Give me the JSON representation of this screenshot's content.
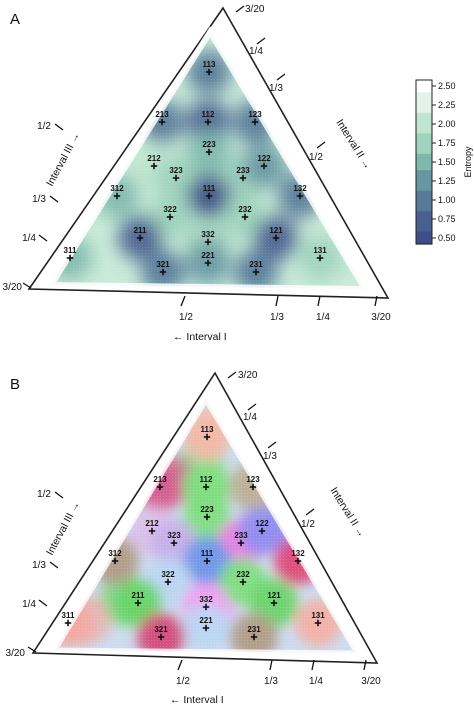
{
  "chart_data": [
    {
      "type": "heatmap",
      "panel_label": "A",
      "description_type": "ternary",
      "axes": {
        "interval_1": {
          "label": "← Interval I",
          "ticks": [
            "1/2",
            "1/3",
            "1/4",
            "3/20"
          ]
        },
        "interval_2": {
          "label": "Interval II →",
          "ticks": [
            "3/20",
            "1/4",
            "1/3",
            "1/2"
          ]
        },
        "interval_3": {
          "label": "Interval III →",
          "ticks": [
            "1/2",
            "1/3",
            "1/4",
            "3/20"
          ]
        }
      },
      "colorbar": {
        "title": "Entropy",
        "ticks": [
          "2.50",
          "2.25",
          "2.00",
          "1.75",
          "1.50",
          "1.25",
          "1.00",
          "0.75",
          "0.50"
        ],
        "range": [
          0.5,
          2.5
        ],
        "colors": [
          "#ffffff",
          "#e3f3ea",
          "#c0e6d1",
          "#9ed3bd",
          "#7fb8ad",
          "#6797a3",
          "#577a99",
          "#485f8f",
          "#3d4f86"
        ]
      },
      "points": [
        {
          "label": "113",
          "i1": 0.25,
          "i2": 0.25,
          "i3": 0.5,
          "entropy": 1.05
        },
        {
          "label": "213",
          "i1": 0.333,
          "i2": 0.167,
          "i3": 0.5,
          "entropy": 0.95
        },
        {
          "label": "112",
          "i1": 0.25,
          "i2": 0.25,
          "i3": 0.5,
          "entropy": 0.8
        },
        {
          "label": "123",
          "i1": 0.167,
          "i2": 0.333,
          "i3": 0.5,
          "entropy": 0.95
        },
        {
          "label": "223",
          "i1": 0.286,
          "i2": 0.286,
          "i3": 0.429,
          "entropy": 1.6
        },
        {
          "label": "212",
          "i1": 0.4,
          "i2": 0.2,
          "i3": 0.4,
          "entropy": 1.9
        },
        {
          "label": "323",
          "i1": 0.375,
          "i2": 0.25,
          "i3": 0.375,
          "entropy": 1.8
        },
        {
          "label": "233",
          "i1": 0.25,
          "i2": 0.375,
          "i3": 0.375,
          "entropy": 1.8
        },
        {
          "label": "122",
          "i1": 0.2,
          "i2": 0.4,
          "i3": 0.4,
          "entropy": 1.3
        },
        {
          "label": "312",
          "i1": 0.5,
          "i2": 0.167,
          "i3": 0.333,
          "entropy": 1.4
        },
        {
          "label": "111",
          "i1": 0.333,
          "i2": 0.333,
          "i3": 0.333,
          "entropy": 0.55
        },
        {
          "label": "132",
          "i1": 0.167,
          "i2": 0.5,
          "i3": 0.333,
          "entropy": 1.0
        },
        {
          "label": "322",
          "i1": 0.429,
          "i2": 0.286,
          "i3": 0.286,
          "entropy": 1.75
        },
        {
          "label": "232",
          "i1": 0.286,
          "i2": 0.429,
          "i3": 0.286,
          "entropy": 1.7
        },
        {
          "label": "211",
          "i1": 0.5,
          "i2": 0.25,
          "i3": 0.25,
          "entropy": 0.65
        },
        {
          "label": "332",
          "i1": 0.375,
          "i2": 0.375,
          "i3": 0.25,
          "entropy": 1.65
        },
        {
          "label": "121",
          "i1": 0.25,
          "i2": 0.5,
          "i3": 0.25,
          "entropy": 0.75
        },
        {
          "label": "311",
          "i1": 0.6,
          "i2": 0.2,
          "i3": 0.2,
          "entropy": 1.6
        },
        {
          "label": "221",
          "i1": 0.4,
          "i2": 0.4,
          "i3": 0.2,
          "entropy": 1.3
        },
        {
          "label": "131",
          "i1": 0.2,
          "i2": 0.6,
          "i3": 0.2,
          "entropy": 1.8
        },
        {
          "label": "321",
          "i1": 0.5,
          "i2": 0.333,
          "i3": 0.167,
          "entropy": 0.95
        },
        {
          "label": "231",
          "i1": 0.333,
          "i2": 0.5,
          "i3": 0.167,
          "entropy": 0.9
        }
      ]
    },
    {
      "type": "heatmap",
      "panel_label": "B",
      "description_type": "ternary-categorical",
      "axes": {
        "interval_1": {
          "label": "← Interval I",
          "ticks": [
            "1/2",
            "1/3",
            "1/4",
            "3/20"
          ]
        },
        "interval_2": {
          "label": "Interval II →",
          "ticks": [
            "3/20",
            "1/4",
            "1/3",
            "1/2"
          ]
        },
        "interval_3": {
          "label": "Interval III →",
          "ticks": [
            "1/2",
            "1/3",
            "1/4",
            "3/20"
          ]
        }
      },
      "points": [
        {
          "label": "113",
          "color": "#f2b8a6"
        },
        {
          "label": "213",
          "color": "#d45e8f"
        },
        {
          "label": "112",
          "color": "#7ede7e"
        },
        {
          "label": "123",
          "color": "#bdb09a"
        },
        {
          "label": "223",
          "color": "#7ede7e"
        },
        {
          "label": "212",
          "color": "#dcc0e8"
        },
        {
          "label": "323",
          "color": "#c6b0e8"
        },
        {
          "label": "233",
          "color": "#ee7fe0"
        },
        {
          "label": "122",
          "color": "#8f8cf0"
        },
        {
          "label": "312",
          "color": "#b09c86"
        },
        {
          "label": "111",
          "color": "#6f98e8"
        },
        {
          "label": "132",
          "color": "#de4a78"
        },
        {
          "label": "322",
          "color": "#bcd6f2"
        },
        {
          "label": "232",
          "color": "#7ede7e"
        },
        {
          "label": "211",
          "color": "#68d468"
        },
        {
          "label": "332",
          "color": "#ee9ff2"
        },
        {
          "label": "121",
          "color": "#68d468"
        },
        {
          "label": "311",
          "color": "#f2a8a0"
        },
        {
          "label": "221",
          "color": "#bcd6f2"
        },
        {
          "label": "131",
          "color": "#f2b0a6"
        },
        {
          "label": "321",
          "color": "#d44a78"
        },
        {
          "label": "231",
          "color": "#b09c86"
        }
      ],
      "background_colors": [
        "#c8d8f2",
        "#f2c8b4",
        "#7ede7e",
        "#d45e8f",
        "#bdb09a",
        "#8f8cf0",
        "#6f98e8",
        "#ee9ff2",
        "#68d468",
        "#f2a8a0"
      ]
    }
  ]
}
